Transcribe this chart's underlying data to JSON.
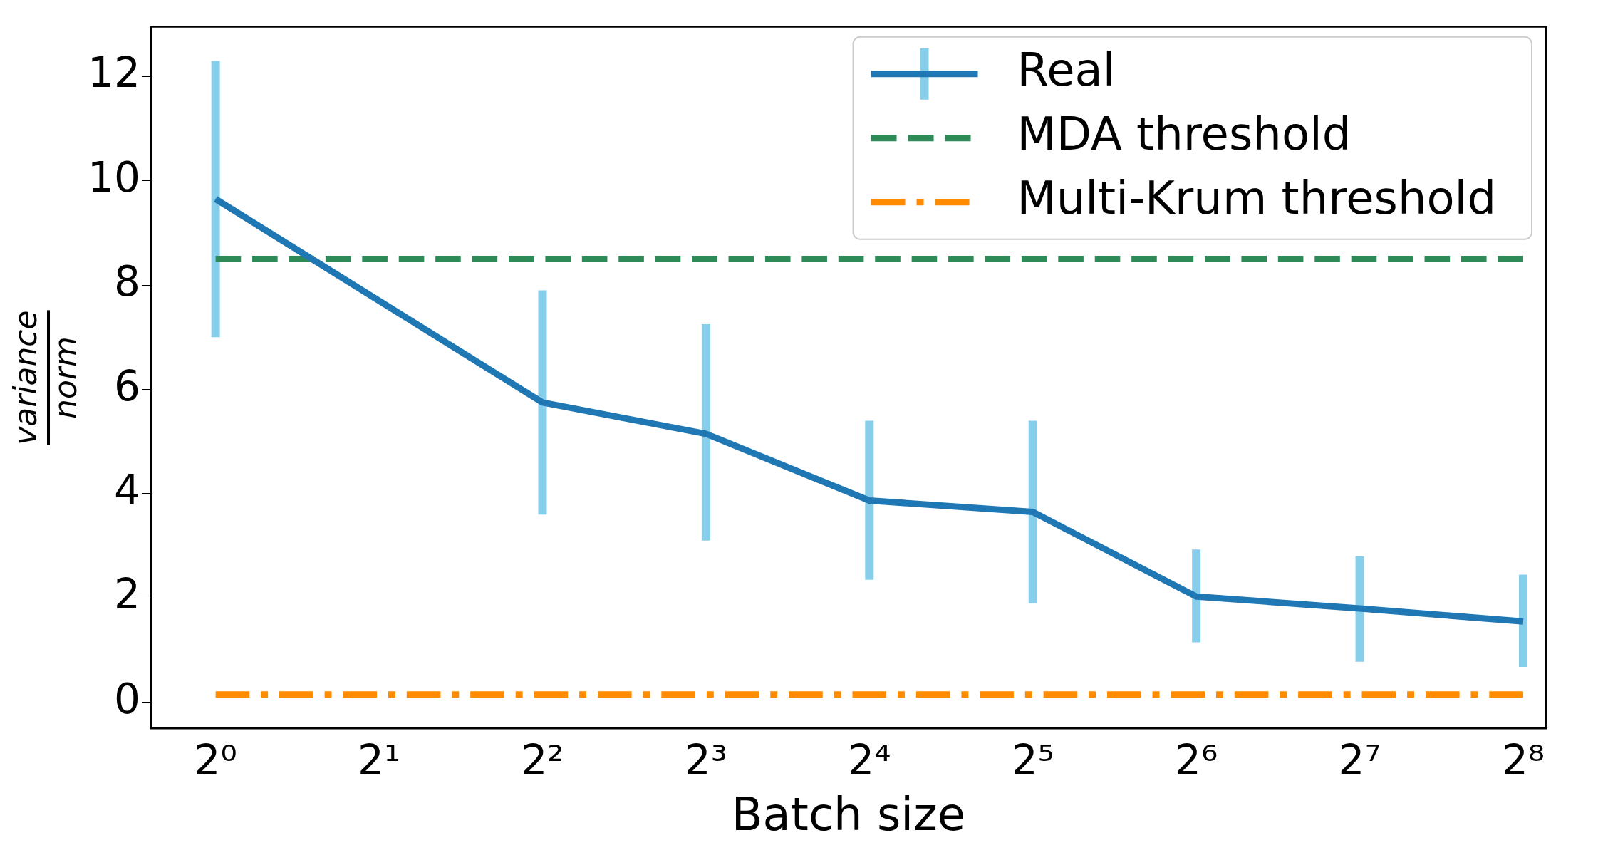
{
  "chart_data": {
    "type": "line",
    "xlabel": "Batch size",
    "ylabel": "variance norm",
    "log": "x",
    "xlim": [
      0.76,
      282
    ],
    "ylim": [
      -0.5,
      12.95
    ],
    "xticks": [
      {
        "value": 1,
        "label": "2⁰"
      },
      {
        "value": 2,
        "label": "2¹"
      },
      {
        "value": 4,
        "label": "2²"
      },
      {
        "value": 8,
        "label": "2³"
      },
      {
        "value": 16,
        "label": "2⁴"
      },
      {
        "value": 32,
        "label": "2⁵"
      },
      {
        "value": 64,
        "label": "2⁶"
      },
      {
        "value": 128,
        "label": "2⁷"
      },
      {
        "value": 256,
        "label": "2⁸"
      }
    ],
    "yticks": [
      0,
      2,
      4,
      6,
      8,
      10,
      12
    ],
    "grid": false,
    "legend": "top right",
    "series": [
      {
        "name": "Real",
        "color": "#1f77b4",
        "x": [
          1,
          4,
          8,
          16,
          32,
          64,
          128,
          256
        ],
        "values": [
          9.65,
          5.75,
          5.15,
          3.87,
          3.65,
          2.03,
          1.8,
          1.55
        ],
        "errors": [
          [
            7.0,
            12.3
          ],
          [
            3.6,
            7.9
          ],
          [
            3.1,
            7.25
          ],
          [
            2.35,
            5.4
          ],
          [
            1.9,
            5.4
          ],
          [
            1.15,
            2.93
          ],
          [
            0.78,
            2.8
          ],
          [
            0.68,
            2.45
          ]
        ],
        "line_style": "solid"
      },
      {
        "name": "MDA threshold",
        "color": "#2e8b57",
        "x": [
          1,
          256
        ],
        "values": [
          8.5,
          8.5
        ],
        "line_style": "dashed"
      },
      {
        "name": "Multi-Krum threshold",
        "color": "#ff8c00",
        "x": [
          1,
          256
        ],
        "values": [
          0.15,
          0.15
        ],
        "line_style": "dashdot"
      }
    ]
  }
}
